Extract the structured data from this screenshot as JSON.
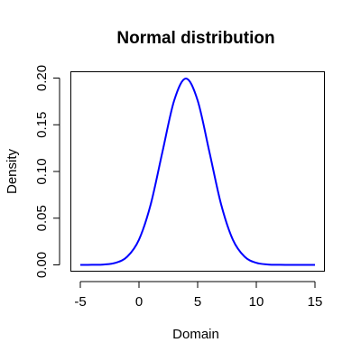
{
  "chart_data": {
    "type": "line",
    "title": "Normal distribution",
    "xlabel": "Domain",
    "ylabel": "Density",
    "xlim": [
      -5,
      15
    ],
    "ylim": [
      0,
      0.2
    ],
    "x_ticks": [
      -5,
      0,
      5,
      10,
      15
    ],
    "y_ticks": [
      0.0,
      0.05,
      0.1,
      0.15,
      0.2
    ],
    "x_tick_labels": [
      "-5",
      "0",
      "5",
      "10",
      "15"
    ],
    "y_tick_labels": [
      "0.00",
      "0.05",
      "0.10",
      "0.15",
      "0.20"
    ],
    "grid": false,
    "series": [
      {
        "color": "#0000ff",
        "x": [
          -5,
          -4,
          -3,
          -2,
          -1,
          0,
          1,
          2,
          3,
          4,
          5,
          6,
          7,
          8,
          9,
          10,
          11,
          12,
          13,
          14,
          15
        ],
        "y": [
          0.0,
          0.0001,
          0.0004,
          0.0022,
          0.0088,
          0.027,
          0.0648,
          0.121,
          0.176,
          0.1995,
          0.176,
          0.121,
          0.0648,
          0.027,
          0.0088,
          0.0022,
          0.0004,
          0.0001,
          0.0,
          0.0,
          0.0
        ]
      }
    ]
  }
}
